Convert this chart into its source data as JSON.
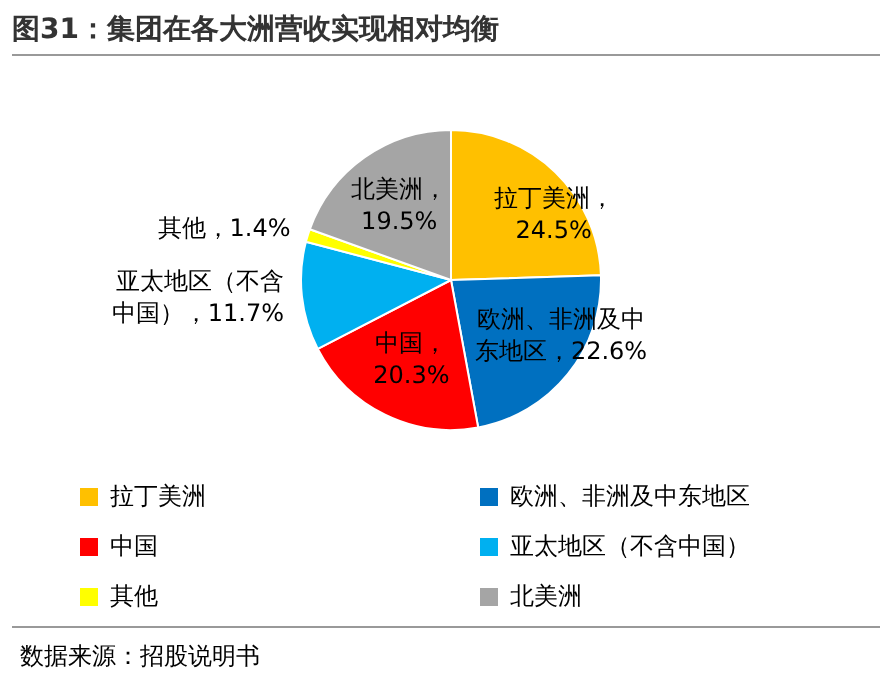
{
  "chart_data": {
    "type": "pie",
    "title": "图31：集团在各大洲营收实现相对均衡",
    "categories": [
      "拉丁美洲",
      "欧洲、非洲及中东地区",
      "中国",
      "亚太地区（不含中国）",
      "其他",
      "北美洲"
    ],
    "values": [
      24.5,
      22.6,
      20.3,
      11.7,
      1.4,
      19.5
    ],
    "value_labels": [
      "拉丁美洲，24.5%",
      "欧洲、非洲及中东地区，22.6%",
      "中国，20.3%",
      "亚太地区（不含中国），11.7%",
      "其他，1.4%",
      "北美洲，19.5%"
    ],
    "colors": [
      "#ffc000",
      "#0070c0",
      "#ff0000",
      "#00b0f0",
      "#ffff00",
      "#a5a5a5"
    ],
    "legend": "bottom",
    "annotations": [
      "数据来源：招股说明书"
    ]
  }
}
